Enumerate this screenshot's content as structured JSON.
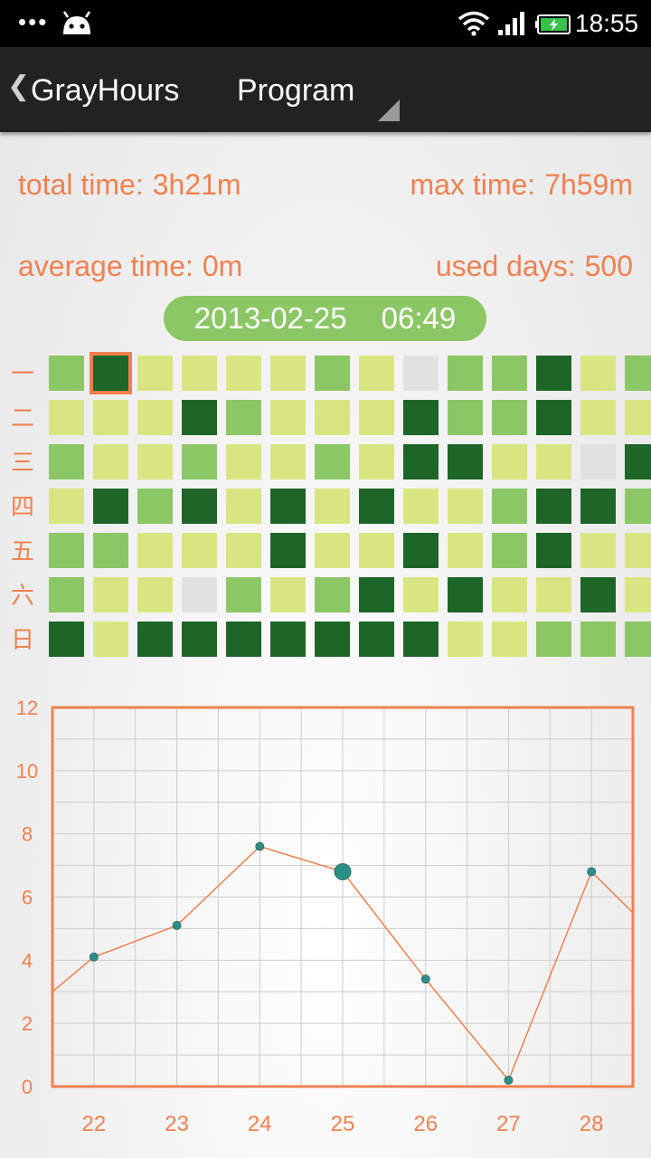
{
  "statusbar": {
    "dots": "•••",
    "time": "18:55",
    "icons": [
      "android-icon",
      "wifi-icon",
      "signal-icon",
      "battery-icon"
    ]
  },
  "actionbar": {
    "back_glyph": "❮",
    "title": "GrayHours",
    "spinner_value": "Program"
  },
  "stats": {
    "total_label": "total time:",
    "total_value": "3h21m",
    "max_label": "max time:",
    "max_value": "7h59m",
    "avg_label": "average time:",
    "avg_value": "0m",
    "days_label": "used days:",
    "days_value": "500"
  },
  "selected": {
    "date": "2013-02-25",
    "time": "06:49"
  },
  "heatmap": {
    "day_labels": [
      "一",
      "二",
      "三",
      "四",
      "五",
      "六",
      "日"
    ],
    "levels_colors": [
      "#e1e1e1",
      "#d8e681",
      "#8cc766",
      "#1e6627"
    ],
    "selected_cell": [
      0,
      1
    ],
    "rows": [
      [
        2,
        3,
        1,
        1,
        1,
        1,
        2,
        1,
        0,
        2,
        2,
        3,
        1,
        2
      ],
      [
        1,
        1,
        1,
        3,
        2,
        1,
        1,
        1,
        3,
        2,
        2,
        3,
        1,
        1
      ],
      [
        2,
        1,
        1,
        2,
        1,
        1,
        2,
        1,
        3,
        3,
        1,
        1,
        0,
        3
      ],
      [
        1,
        3,
        2,
        3,
        1,
        3,
        1,
        3,
        1,
        1,
        2,
        3,
        3,
        2
      ],
      [
        2,
        2,
        1,
        1,
        1,
        3,
        1,
        1,
        3,
        1,
        2,
        3,
        1,
        1
      ],
      [
        2,
        1,
        1,
        0,
        2,
        1,
        2,
        3,
        1,
        3,
        1,
        1,
        3,
        1
      ],
      [
        3,
        1,
        3,
        3,
        3,
        3,
        3,
        3,
        3,
        1,
        1,
        2,
        2,
        2
      ]
    ]
  },
  "chart_data": {
    "type": "line",
    "x": [
      21.5,
      22,
      23,
      24,
      25,
      26,
      27,
      28,
      28.5
    ],
    "values": [
      3.0,
      4.1,
      5.1,
      7.6,
      6.8,
      3.4,
      0.2,
      6.8,
      5.5
    ],
    "highlight_x": 25,
    "xticks": [
      "22",
      "23",
      "24",
      "25",
      "26",
      "27",
      "28"
    ],
    "yticks": [
      "0",
      "2",
      "4",
      "6",
      "8",
      "10",
      "12"
    ],
    "xlim": [
      21.5,
      28.5
    ],
    "ylim": [
      0,
      12
    ],
    "grid": true,
    "colors": {
      "line": "#f0814f",
      "point": "#2a8f86",
      "frame": "#f0814f",
      "grid": "#cccccc",
      "tick": "#f0814f"
    }
  }
}
